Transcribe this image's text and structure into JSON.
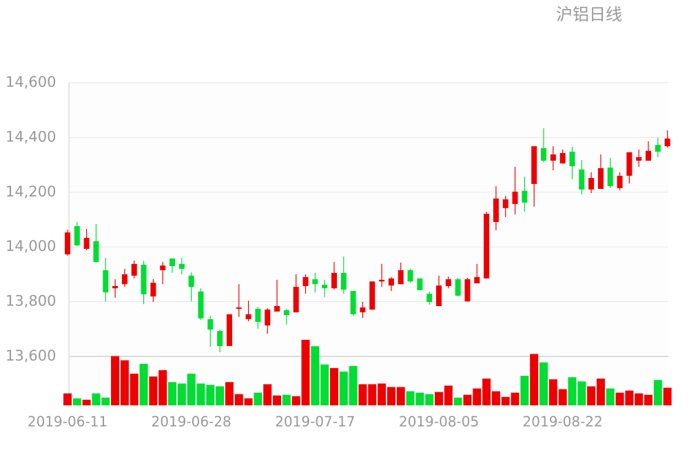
{
  "chart_data": {
    "type": "candlestick",
    "title": "沪铝日线",
    "categories": [
      "2019-06-11",
      null,
      null,
      null,
      null,
      null,
      null,
      null,
      null,
      null,
      null,
      null,
      null,
      "2019-06-28",
      null,
      null,
      null,
      null,
      null,
      null,
      null,
      null,
      null,
      null,
      null,
      null,
      "2019-07-17",
      null,
      null,
      null,
      null,
      null,
      null,
      null,
      null,
      null,
      null,
      null,
      null,
      "2019-08-05",
      null,
      null,
      null,
      null,
      null,
      null,
      null,
      null,
      null,
      null,
      null,
      null,
      "2019-08-22",
      null,
      null,
      null,
      null,
      null,
      null,
      null,
      null,
      null,
      null,
      null
    ],
    "open": [
      13973,
      14076,
      13993,
      14021,
      13915,
      13849,
      13864,
      13895,
      13935,
      13819,
      13915,
      13958,
      13938,
      13895,
      13837,
      13736,
      13693,
      13638,
      13774,
      13736,
      13774,
      13713,
      13764,
      13769,
      13761,
      13857,
      13882,
      13862,
      13849,
      13905,
      13839,
      13761,
      13771,
      13874,
      13859,
      13864,
      13915,
      13885,
      13829,
      13784,
      13857,
      13882,
      13801,
      13867,
      13885,
      14091,
      14142,
      14157,
      14205,
      14230,
      14361,
      14315,
      14305,
      14348,
      14283,
      14210,
      14212,
      14290,
      14215,
      14260,
      14315,
      14315,
      14373,
      14368
    ],
    "high": [
      14063,
      14091,
      14066,
      14084,
      13960,
      13882,
      13920,
      13950,
      13950,
      13882,
      13945,
      13958,
      13960,
      13907,
      13849,
      13749,
      13698,
      13754,
      13864,
      13804,
      13781,
      13776,
      13880,
      13774,
      13900,
      13900,
      13905,
      13880,
      13945,
      13965,
      13839,
      13799,
      13874,
      13938,
      13890,
      13943,
      13920,
      13885,
      13837,
      13895,
      13892,
      13887,
      13887,
      13938,
      14129,
      14222,
      14187,
      14293,
      14257,
      14368,
      14434,
      14368,
      14356,
      14366,
      14318,
      14273,
      14338,
      14325,
      14273,
      14346,
      14356,
      14386,
      14399,
      14426
    ],
    "low": [
      13968,
      14003,
      13988,
      13943,
      13801,
      13814,
      13854,
      13885,
      13791,
      13799,
      13864,
      13905,
      13900,
      13801,
      13733,
      13635,
      13615,
      13638,
      13744,
      13728,
      13701,
      13683,
      13764,
      13716,
      13761,
      13829,
      13834,
      13817,
      13844,
      13829,
      13749,
      13741,
      13771,
      13854,
      13839,
      13864,
      13869,
      13842,
      13789,
      13784,
      13849,
      13819,
      13801,
      13867,
      13885,
      14061,
      14109,
      14119,
      14129,
      14147,
      14310,
      14280,
      14305,
      14247,
      14192,
      14197,
      14212,
      14215,
      14207,
      14232,
      14293,
      14315,
      14328,
      14363
    ],
    "close": [
      14053,
      14006,
      14033,
      13945,
      13834,
      13857,
      13900,
      13938,
      13827,
      13869,
      13932,
      13930,
      13920,
      13854,
      13739,
      13698,
      13638,
      13754,
      13779,
      13754,
      13726,
      13771,
      13784,
      13751,
      13854,
      13890,
      13864,
      13849,
      13905,
      13844,
      13754,
      13779,
      13874,
      13880,
      13885,
      13915,
      13874,
      13842,
      13799,
      13859,
      13882,
      13822,
      13882,
      13890,
      14121,
      14177,
      14174,
      14202,
      14162,
      14368,
      14315,
      14338,
      14343,
      14295,
      14210,
      14252,
      14288,
      14222,
      14260,
      14346,
      14328,
      14351,
      14348,
      14396
    ],
    "volume": [
      17,
      10,
      8,
      17,
      11,
      70,
      64,
      45,
      59,
      41,
      50,
      33,
      31,
      45,
      31,
      29,
      27,
      33,
      16,
      10,
      18,
      30,
      14,
      15,
      13,
      93,
      84,
      58,
      53,
      48,
      56,
      30,
      30,
      31,
      26,
      26,
      20,
      18,
      16,
      19,
      28,
      11,
      15,
      24,
      38,
      20,
      12,
      18,
      42,
      73,
      61,
      37,
      23,
      40,
      34,
      27,
      38,
      24,
      18,
      21,
      17,
      15,
      36,
      25
    ],
    "up_color": "#ee0000",
    "down_color": "#00dd33",
    "ylim": [
      13600,
      14600
    ],
    "yticks": [
      {
        "value": 13600,
        "label": "13,600"
      },
      {
        "value": 13800,
        "label": "13,800"
      },
      {
        "value": 14000,
        "label": "14,000"
      },
      {
        "value": 14200,
        "label": "14,200"
      },
      {
        "value": 14400,
        "label": "14,400"
      },
      {
        "value": 14600,
        "label": "14,600"
      }
    ],
    "grid": true
  }
}
